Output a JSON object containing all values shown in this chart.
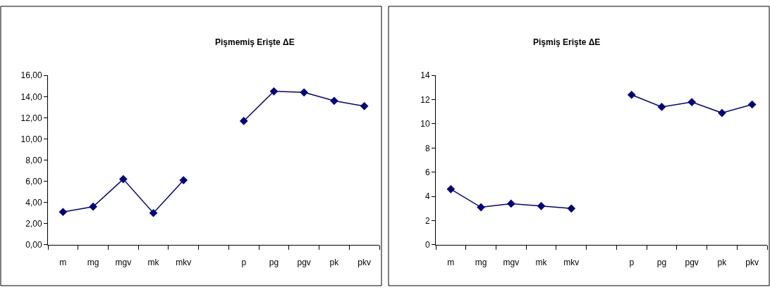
{
  "chart_data": [
    {
      "type": "line",
      "title": "Pişmemiş Erişte ΔE",
      "categories": [
        "m",
        "mg",
        "mgv",
        "mk",
        "mkv",
        null,
        "p",
        "pg",
        "pgv",
        "pk",
        "pkv"
      ],
      "series": [
        {
          "color": "#000080",
          "values": [
            3.1,
            3.6,
            6.2,
            3.0,
            6.1,
            null,
            11.7,
            14.5,
            14.4,
            13.6,
            13.1
          ]
        }
      ],
      "ylim": [
        0,
        16
      ],
      "yticks": [
        {
          "value": 0,
          "label": "0,00"
        },
        {
          "value": 2,
          "label": "2,00"
        },
        {
          "value": 4,
          "label": "4,00"
        },
        {
          "value": 6,
          "label": "6,00"
        },
        {
          "value": 8,
          "label": "8,00"
        },
        {
          "value": 10,
          "label": "10,00"
        },
        {
          "value": 12,
          "label": "12,00"
        },
        {
          "value": 14,
          "label": "14,00"
        },
        {
          "value": 16,
          "label": "16,00"
        }
      ],
      "marker": "diamond",
      "line_style": "solid",
      "grid": false
    },
    {
      "type": "line",
      "title": "Pişmiş Erişte ΔE",
      "categories": [
        "m",
        "mg",
        "mgv",
        "mk",
        "mkv",
        null,
        "p",
        "pg",
        "pgv",
        "pk",
        "pkv"
      ],
      "series": [
        {
          "color": "#000080",
          "values": [
            4.6,
            3.1,
            3.4,
            3.2,
            3.0,
            null,
            12.4,
            11.4,
            11.8,
            10.9,
            11.6
          ]
        }
      ],
      "ylim": [
        0,
        14
      ],
      "yticks": [
        0,
        2,
        4,
        6,
        8,
        10,
        12,
        14
      ],
      "marker": "diamond",
      "line_style": "solid",
      "grid": false
    }
  ]
}
